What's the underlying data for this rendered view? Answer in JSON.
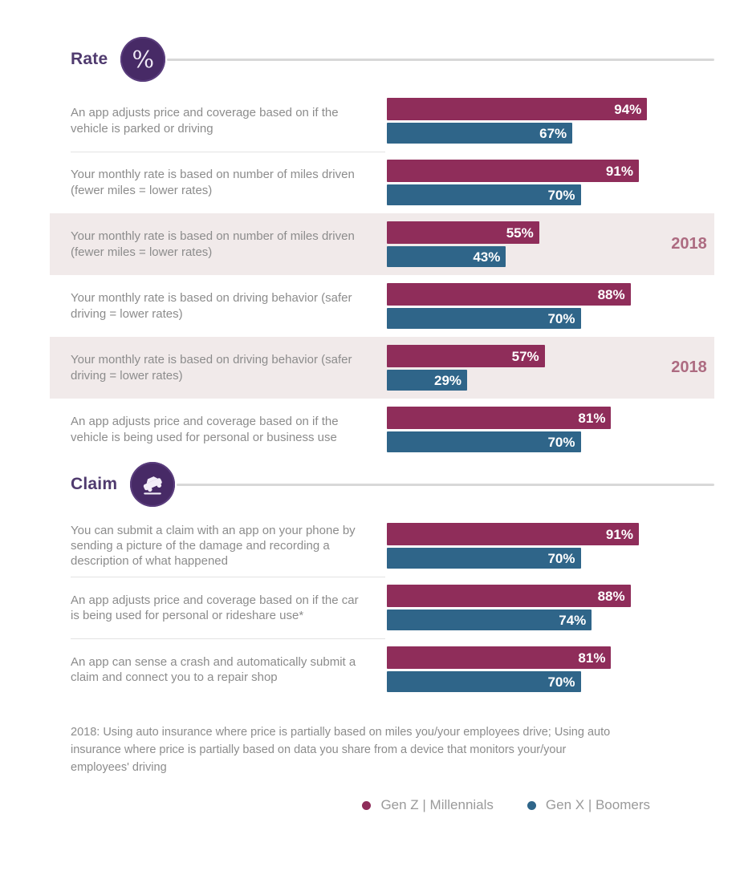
{
  "chart_data": {
    "type": "bar",
    "orientation": "horizontal",
    "unit": "%",
    "xlim": [
      0,
      100
    ],
    "grid": false,
    "legend_position": "bottom-right",
    "series": [
      {
        "name": "Gen Z | Millennials",
        "color": "#8f2d5a"
      },
      {
        "name": "Gen X | Boomers",
        "color": "#2f6589"
      }
    ],
    "highlight_background": "#f1eaea",
    "year_label_color": "#ad6b81",
    "accent_purple": "#472a66",
    "groups": [
      {
        "section": "Rate",
        "icon": "percent",
        "items": [
          {
            "label": "An app adjusts price and coverage based on if the vehicle is parked or driving",
            "values": [
              94,
              67
            ],
            "year": "",
            "highlighted": false
          },
          {
            "label": "Your monthly rate is based on number of miles driven (fewer miles = lower rates)",
            "values": [
              91,
              70
            ],
            "year": "",
            "highlighted": false
          },
          {
            "label": "Your monthly rate is based on number of miles driven (fewer miles = lower rates)",
            "values": [
              55,
              43
            ],
            "year": "2018",
            "highlighted": true
          },
          {
            "label": "Your monthly rate is based on driving behavior (safer driving = lower rates)",
            "values": [
              88,
              70
            ],
            "year": "",
            "highlighted": false
          },
          {
            "label": "Your monthly rate is based on driving behavior (safer driving = lower rates)",
            "values": [
              57,
              29
            ],
            "year": "2018",
            "highlighted": true
          },
          {
            "label": "An app adjusts price and coverage based on if the vehicle is being used for personal or business use",
            "values": [
              81,
              70
            ],
            "year": "",
            "highlighted": false
          }
        ]
      },
      {
        "section": "Claim",
        "icon": "car-crash",
        "items": [
          {
            "label": "You can submit a claim with an app on your phone by sending a picture of the damage and recording a description of what happened",
            "values": [
              91,
              70
            ],
            "year": "",
            "highlighted": false
          },
          {
            "label": "An app adjusts price and coverage based on if the car is being used for personal or rideshare use*",
            "values": [
              88,
              74
            ],
            "year": "",
            "highlighted": false
          },
          {
            "label": "An app can sense a crash and automatically submit a claim and connect you to a repair shop",
            "values": [
              81,
              70
            ],
            "year": "",
            "highlighted": false
          }
        ]
      }
    ],
    "footnote": "2018: Using auto insurance where price is partially based on miles you/your employees drive; Using auto insurance where price is partially based on data you share from a device that monitors your/your employees' driving"
  }
}
